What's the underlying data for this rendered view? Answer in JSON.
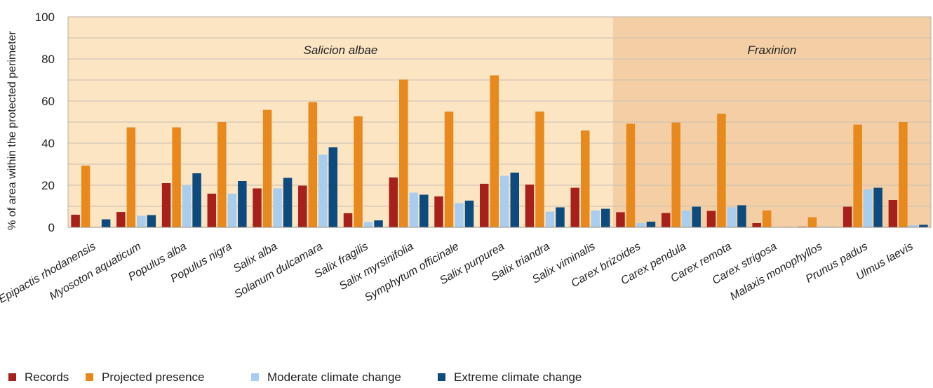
{
  "chart_data": {
    "type": "bar",
    "ylabel": "% of area within the protected perimeter",
    "ylim": [
      0,
      100
    ],
    "yticks": [
      0,
      20,
      40,
      60,
      80,
      100
    ],
    "grid": true,
    "legend_position": "bottom-left",
    "categories": [
      "Epipactis rhodanensis",
      "Myosoton aquaticum",
      "Populus alba",
      "Populus nigra",
      "Salix alba",
      "Solanum dulcamara",
      "Salix fragilis",
      "Salix myrsinifolia",
      "Symphytum officinale",
      "Salix purpurea",
      "Salix triandra",
      "Salix viminalis",
      "Carex brizoides",
      "Carex pendula",
      "Carex remota",
      "Carex strigosa",
      "Malaxis monophyllos",
      "Prunus padus",
      "Ulmus laevis"
    ],
    "regions": [
      {
        "label": "Salicion albae",
        "start": 0,
        "end": 11,
        "color": "#fbe5c3"
      },
      {
        "label": "Fraxinion",
        "start": 12,
        "end": 18,
        "color": "#f4cfa5"
      }
    ],
    "series": [
      {
        "name": "Records",
        "color": "#a6211c",
        "values": [
          6,
          7.3,
          21,
          16,
          18.5,
          19.8,
          6.7,
          23.7,
          14.7,
          20.7,
          20.3,
          18.8,
          7.2,
          6.8,
          7.8,
          2,
          0.3,
          9.8,
          13
        ]
      },
      {
        "name": "Projected presence",
        "color": "#e7891c",
        "values": [
          29.3,
          47.5,
          47.5,
          50,
          55.8,
          59.5,
          52.8,
          70.2,
          55,
          72.2,
          55,
          46,
          49.2,
          49.8,
          54,
          8,
          4.8,
          48.8,
          50
        ]
      },
      {
        "name": "Moderate climate change",
        "color": "#a8cdee",
        "values": [
          0,
          5.5,
          20,
          16,
          18.5,
          34.5,
          2.5,
          16.5,
          11.5,
          24.5,
          7.5,
          8,
          2,
          8,
          9.5,
          0.2,
          0.3,
          18,
          1
        ]
      },
      {
        "name": "Extreme climate change",
        "color": "#0d4a7e",
        "values": [
          3.8,
          5.8,
          25.7,
          22,
          23.5,
          38,
          3.3,
          15.5,
          12.7,
          26,
          9.5,
          8.8,
          2.7,
          9.8,
          10.5,
          0.2,
          0.2,
          18.8,
          1.2
        ]
      }
    ]
  }
}
